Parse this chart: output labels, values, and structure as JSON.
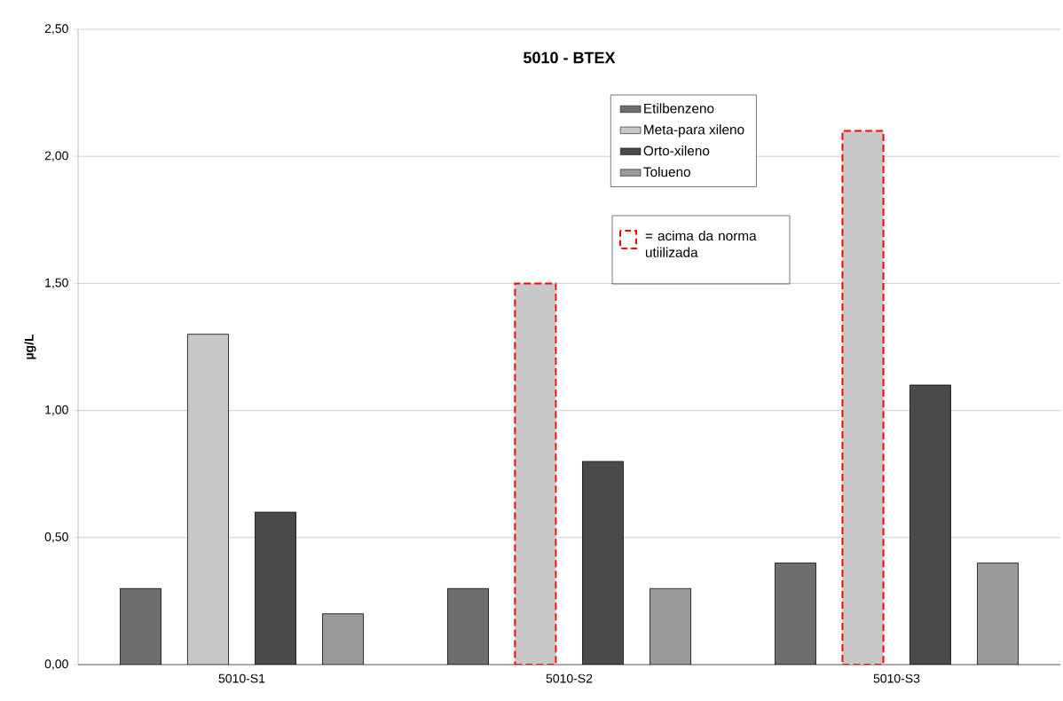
{
  "chart_data": {
    "type": "bar",
    "title": "5010 - BTEX",
    "ylabel": "µg/L",
    "categories": [
      "5010-S1",
      "5010-S2",
      "5010-S3"
    ],
    "series": [
      {
        "name": "Etilbenzeno",
        "color": "#6e6e6e",
        "values": [
          0.3,
          0.3,
          0.4
        ]
      },
      {
        "name": "Meta-para xileno",
        "color": "#c8c8c8",
        "colors": [
          "#c8c8c8",
          "#ff0000",
          "#ff0000"
        ],
        "values": [
          1.3,
          1.5,
          2.1
        ]
      },
      {
        "name": "Orto-xileno",
        "color": "#4a4a4a",
        "values": [
          0.6,
          0.8,
          1.1
        ]
      },
      {
        "name": "Tolueno",
        "color": "#9a9a9a",
        "values": [
          0.2,
          0.3,
          0.4
        ]
      }
    ],
    "ylim": [
      0,
      2.5
    ],
    "yticks": [
      {
        "value": 0,
        "label": "0,00"
      },
      {
        "value": 0.5,
        "label": "0,50"
      },
      {
        "value": 1,
        "label": "1,00"
      },
      {
        "value": 1.5,
        "label": "1,50"
      },
      {
        "value": 2,
        "label": "2,00"
      },
      {
        "value": 2.5,
        "label": "2,50"
      }
    ],
    "grid": "y",
    "legend": "top",
    "annotations": [
      "= acima da norma utiilizada"
    ]
  }
}
